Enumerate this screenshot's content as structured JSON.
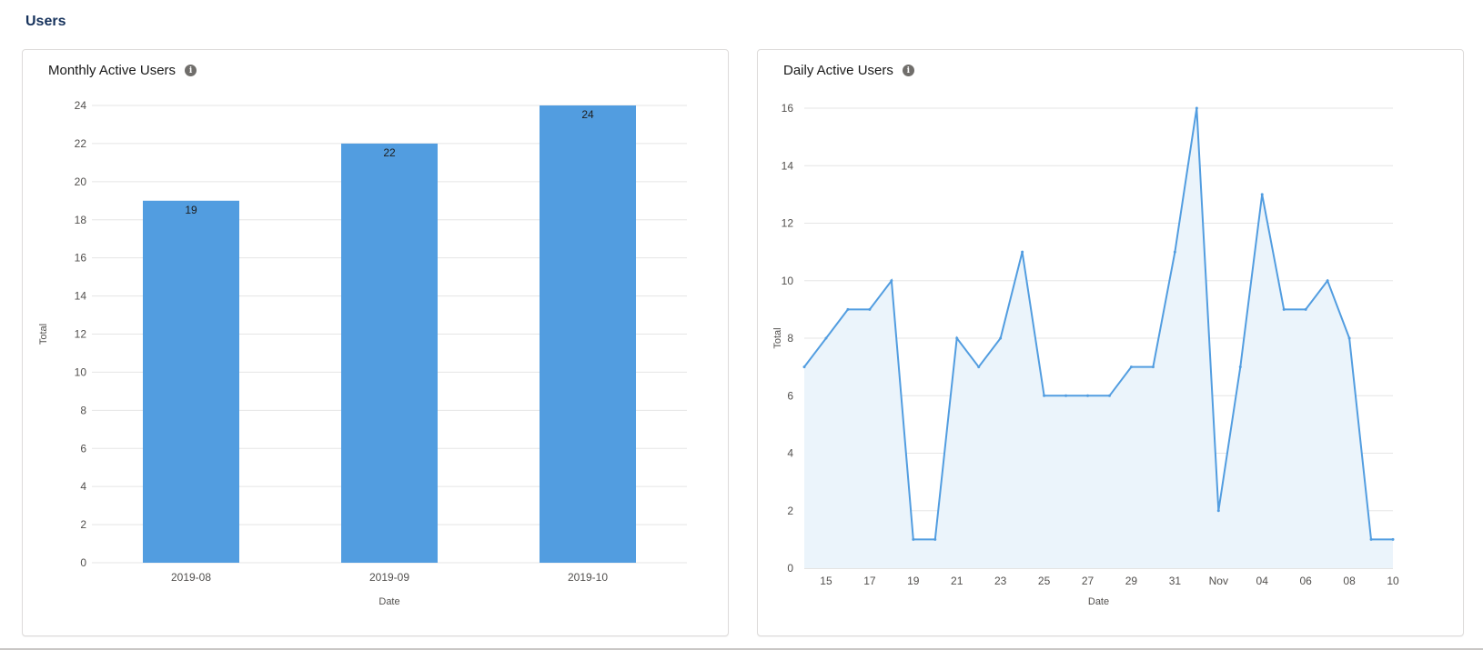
{
  "page": {
    "title": "Users"
  },
  "cards": {
    "mau": {
      "title": "Monthly Active Users",
      "info_icon": "info-icon"
    },
    "dau": {
      "title": "Daily Active Users",
      "info_icon": "info-icon"
    }
  },
  "chart_data": [
    {
      "type": "bar",
      "title": "Monthly Active Users",
      "categories": [
        "2019-08",
        "2019-09",
        "2019-10"
      ],
      "values": [
        19,
        22,
        24
      ],
      "data_labels": [
        "19",
        "22",
        "24"
      ],
      "xlabel": "Date",
      "ylabel": "Total",
      "ylim": [
        0,
        24
      ],
      "yticks": [
        0,
        2,
        4,
        6,
        8,
        10,
        12,
        14,
        16,
        18,
        20,
        22,
        24
      ],
      "grid": true,
      "color": "#529de0"
    },
    {
      "type": "area",
      "title": "Daily Active Users",
      "x": [
        "2019-10-14",
        "2019-10-15",
        "2019-10-16",
        "2019-10-17",
        "2019-10-18",
        "2019-10-19",
        "2019-10-20",
        "2019-10-21",
        "2019-10-22",
        "2019-10-23",
        "2019-10-24",
        "2019-10-25",
        "2019-10-26",
        "2019-10-27",
        "2019-10-28",
        "2019-10-29",
        "2019-10-30",
        "2019-10-31",
        "2019-11-01",
        "2019-11-02",
        "2019-11-03",
        "2019-11-04",
        "2019-11-05",
        "2019-11-06",
        "2019-11-07",
        "2019-11-08",
        "2019-11-09",
        "2019-11-10"
      ],
      "values": [
        7,
        8,
        9,
        9,
        10,
        1,
        1,
        8,
        7,
        8,
        11,
        6,
        6,
        6,
        6,
        7,
        7,
        11,
        16,
        2,
        7,
        13,
        9,
        9,
        10,
        8,
        1,
        1
      ],
      "xticks": [
        "15",
        "17",
        "19",
        "21",
        "23",
        "25",
        "27",
        "29",
        "31",
        "Nov",
        "04",
        "06",
        "08",
        "10"
      ],
      "xlabel": "Date",
      "ylabel": "Total",
      "ylim": [
        0,
        16
      ],
      "yticks": [
        0,
        2,
        4,
        6,
        8,
        10,
        12,
        14,
        16
      ],
      "grid": true,
      "color": "#529de0",
      "fill_color": "#ebf4fb"
    }
  ]
}
